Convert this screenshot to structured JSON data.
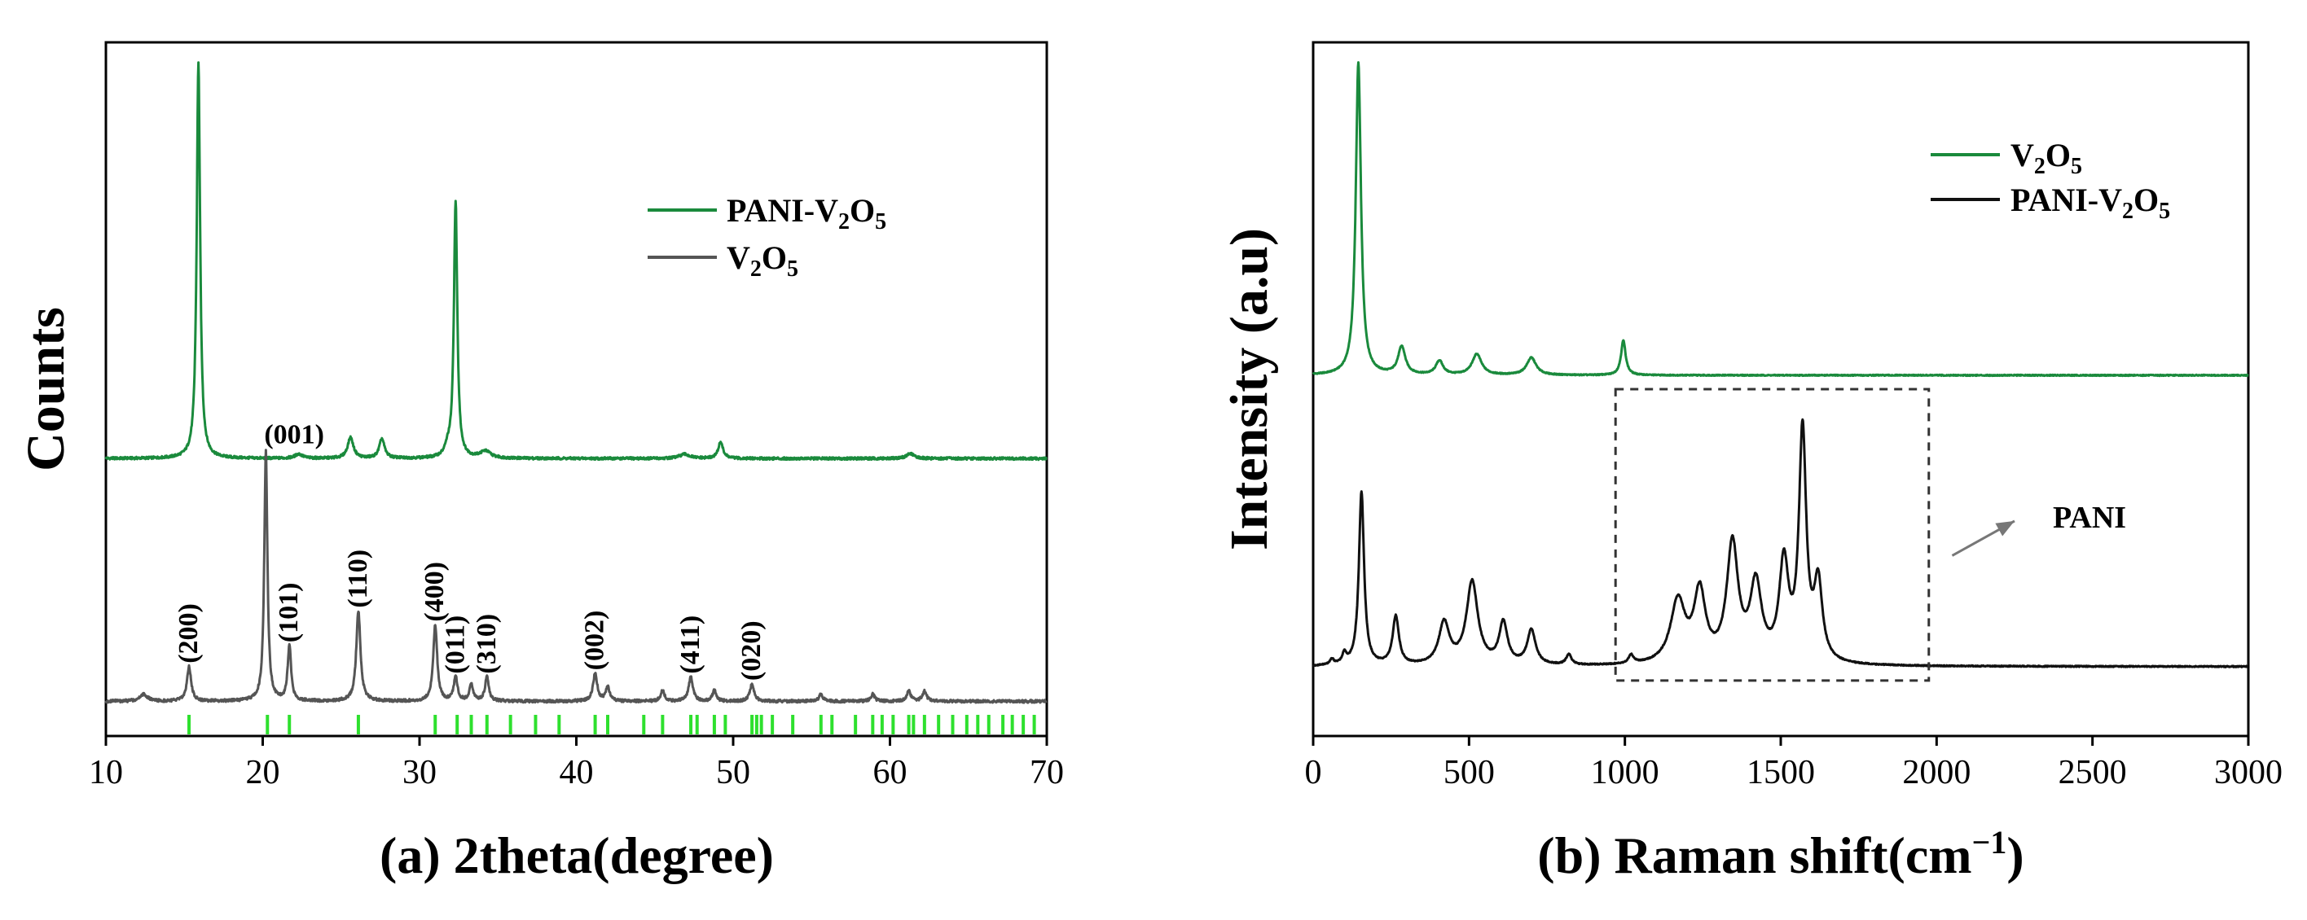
{
  "colors": {
    "green": "#1a8a3c",
    "gray": "#555555",
    "black": "#111111",
    "ref_green": "#2ee02e"
  },
  "chart_data": [
    {
      "type": "line",
      "panel": "a",
      "xlabel": "(a) 2theta(degree)",
      "ylabel": "Counts",
      "xlim": [
        10,
        70
      ],
      "ylim": [
        0,
        100
      ],
      "xticks": [
        "10",
        "20",
        "30",
        "40",
        "50",
        "60",
        "70"
      ],
      "xtick_values": [
        10,
        20,
        30,
        40,
        50,
        60,
        70
      ],
      "yticks_visible": false,
      "legend": [
        {
          "series": "green",
          "main": "PANI-V",
          "sub1": "2",
          "mid": "O",
          "sub2": "5"
        },
        {
          "series": "gray",
          "main": "V",
          "sub1": "2",
          "mid": "O",
          "sub2": "5"
        }
      ],
      "series": [
        {
          "name": "PANI-V2O5",
          "color": "green",
          "baseline": 40,
          "noise": 0.35,
          "peaks": [
            {
              "x": 15.9,
              "h": 57,
              "w": 0.13
            },
            {
              "x": 22.3,
              "h": 0.6,
              "w": 0.3
            },
            {
              "x": 25.6,
              "h": 3,
              "w": 0.22
            },
            {
              "x": 27.6,
              "h": 2.8,
              "w": 0.2
            },
            {
              "x": 31.8,
              "h": 1.2,
              "w": 0.2
            },
            {
              "x": 32.3,
              "h": 37,
              "w": 0.13
            },
            {
              "x": 34.2,
              "h": 1,
              "w": 0.4
            },
            {
              "x": 46.9,
              "h": 0.6,
              "w": 0.4
            },
            {
              "x": 49.2,
              "h": 2.4,
              "w": 0.18
            },
            {
              "x": 61.3,
              "h": 0.7,
              "w": 0.3
            }
          ]
        },
        {
          "name": "V2O5",
          "color": "gray",
          "baseline": 5,
          "noise": 0.4,
          "peaks": [
            {
              "x": 12.4,
              "h": 1,
              "w": 0.3
            },
            {
              "x": 15.3,
              "h": 5,
              "w": 0.16
            },
            {
              "x": 20.2,
              "h": 36,
              "w": 0.12
            },
            {
              "x": 21.7,
              "h": 8,
              "w": 0.13
            },
            {
              "x": 26.1,
              "h": 13,
              "w": 0.16
            },
            {
              "x": 31.0,
              "h": 11,
              "w": 0.15
            },
            {
              "x": 32.3,
              "h": 3.5,
              "w": 0.14
            },
            {
              "x": 33.3,
              "h": 2.5,
              "w": 0.14
            },
            {
              "x": 34.3,
              "h": 3.5,
              "w": 0.14
            },
            {
              "x": 41.2,
              "h": 4,
              "w": 0.16
            },
            {
              "x": 42.0,
              "h": 2,
              "w": 0.15
            },
            {
              "x": 45.5,
              "h": 1.5,
              "w": 0.15
            },
            {
              "x": 47.3,
              "h": 3.5,
              "w": 0.16
            },
            {
              "x": 48.8,
              "h": 1.5,
              "w": 0.15
            },
            {
              "x": 51.2,
              "h": 2.5,
              "w": 0.16
            },
            {
              "x": 55.6,
              "h": 1,
              "w": 0.15
            },
            {
              "x": 58.9,
              "h": 1,
              "w": 0.15
            },
            {
              "x": 61.2,
              "h": 1.5,
              "w": 0.15
            },
            {
              "x": 62.2,
              "h": 1.5,
              "w": 0.15
            }
          ]
        }
      ],
      "reference_lines": [
        15.3,
        20.3,
        21.7,
        26.1,
        31.0,
        32.4,
        33.3,
        34.3,
        35.8,
        37.4,
        38.9,
        41.2,
        42.0,
        44.3,
        45.5,
        47.3,
        47.7,
        48.8,
        49.5,
        51.2,
        51.5,
        51.8,
        52.5,
        53.8,
        55.6,
        56.3,
        57.8,
        58.9,
        59.5,
        60.2,
        61.2,
        61.5,
        62.2,
        63.1,
        64.0,
        64.9,
        65.6,
        66.3,
        67.2,
        67.8,
        68.5,
        69.2
      ],
      "peak_labels": [
        {
          "label": "(200)",
          "x": 15.3,
          "y_tip": 10
        },
        {
          "label": "(001)",
          "x": 20.2,
          "y_tip": 41
        },
        {
          "label": "(101)",
          "x": 21.7,
          "y_tip": 13
        },
        {
          "label": "(110)",
          "x": 26.1,
          "y_tip": 18
        },
        {
          "label": "(400)",
          "x": 31.0,
          "y_tip": 16
        },
        {
          "label": "(011)",
          "x": 32.3,
          "y_tip": 8.5
        },
        {
          "label": "(310)",
          "x": 34.3,
          "y_tip": 8.5
        },
        {
          "label": "(002)",
          "x": 41.2,
          "y_tip": 9
        },
        {
          "label": "(411)",
          "x": 47.3,
          "y_tip": 8.5
        },
        {
          "label": "(020)",
          "x": 51.2,
          "y_tip": 7.5
        }
      ]
    },
    {
      "type": "line",
      "panel": "b",
      "xlabel": "(b) Raman shift(cm−1)",
      "xlabel_main": "(b) Raman shift(cm",
      "xlabel_sup": "−1",
      "xlabel_end": ")",
      "ylabel": "Intensity (a.u)",
      "xlim": [
        0,
        3000
      ],
      "ylim": [
        0,
        100
      ],
      "xticks": [
        "0",
        "500",
        "1000",
        "1500",
        "2000",
        "2500",
        "3000"
      ],
      "xtick_values": [
        0,
        500,
        1000,
        1500,
        2000,
        2500,
        3000
      ],
      "yticks_visible": false,
      "legend": [
        {
          "series": "green",
          "main": "V",
          "sub1": "2",
          "mid": "O",
          "sub2": "5"
        },
        {
          "series": "black",
          "main": "PANI-V",
          "sub1": "2",
          "mid": "O",
          "sub2": "5"
        }
      ],
      "series": [
        {
          "name": "V2O5",
          "color": "green",
          "baseline": 52,
          "noise": 0.15,
          "peaks": [
            {
              "x": 145,
              "h": 45,
              "w": 10
            },
            {
              "x": 284,
              "h": 4,
              "w": 14
            },
            {
              "x": 405,
              "h": 2,
              "w": 14
            },
            {
              "x": 525,
              "h": 3,
              "w": 18
            },
            {
              "x": 700,
              "h": 2.5,
              "w": 18
            },
            {
              "x": 995,
              "h": 5,
              "w": 9
            }
          ]
        },
        {
          "name": "PANI-V2O5",
          "color": "black",
          "baseline": 10,
          "noise": 0.15,
          "peaks": [
            {
              "x": 60,
              "h": 0.8,
              "w": 8
            },
            {
              "x": 100,
              "h": 1.5,
              "w": 8
            },
            {
              "x": 155,
              "h": 25,
              "w": 10
            },
            {
              "x": 265,
              "h": 7,
              "w": 12
            },
            {
              "x": 420,
              "h": 6,
              "w": 20
            },
            {
              "x": 510,
              "h": 12,
              "w": 22
            },
            {
              "x": 610,
              "h": 6,
              "w": 16
            },
            {
              "x": 700,
              "h": 5,
              "w": 16
            },
            {
              "x": 820,
              "h": 1.5,
              "w": 10
            },
            {
              "x": 1020,
              "h": 1.2,
              "w": 10
            },
            {
              "x": 1170,
              "h": 9,
              "w": 28
            },
            {
              "x": 1240,
              "h": 10,
              "w": 22
            },
            {
              "x": 1345,
              "h": 17,
              "w": 22
            },
            {
              "x": 1420,
              "h": 11,
              "w": 22
            },
            {
              "x": 1510,
              "h": 14,
              "w": 18
            },
            {
              "x": 1570,
              "h": 33,
              "w": 14
            },
            {
              "x": 1620,
              "h": 11,
              "w": 16
            }
          ]
        }
      ],
      "box": {
        "x0": 970,
        "x1": 1975,
        "y0": 8,
        "y1": 50
      },
      "annotation": {
        "text": "PANI",
        "from_x": 2050,
        "from_y": 26,
        "to_x": 2250,
        "to_y": 31
      }
    }
  ]
}
